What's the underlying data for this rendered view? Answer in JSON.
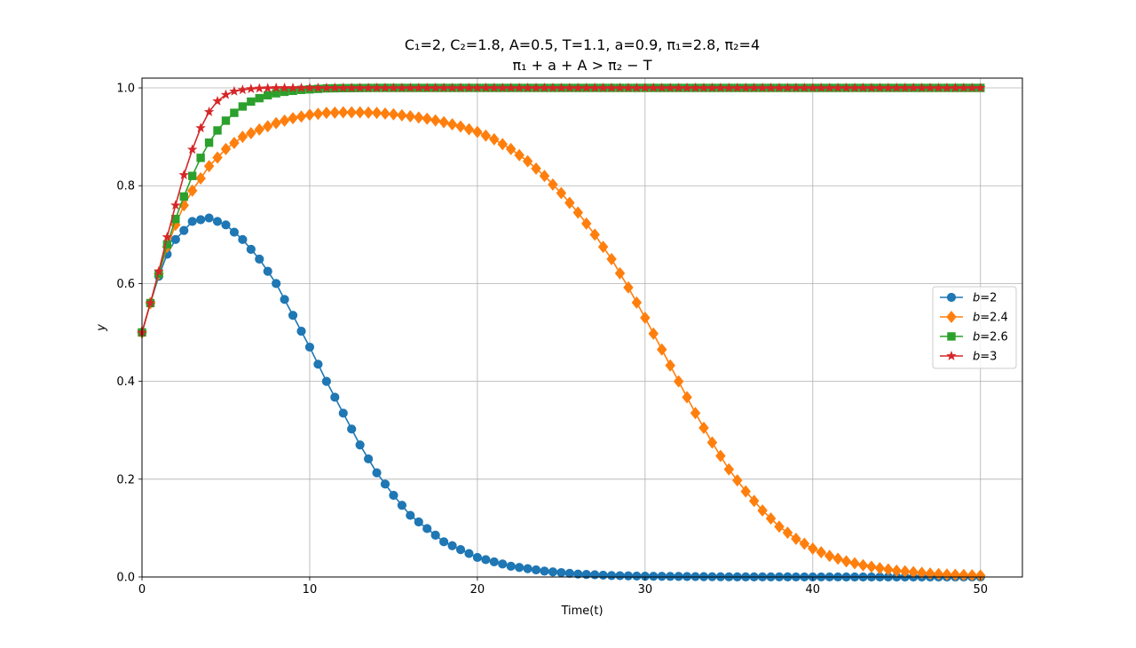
{
  "chart_data": {
    "type": "line",
    "title_line1": "C₁=2, C₂=1.8, A=0.5, T=1.1, a=0.9, π₁=2.8, π₂=4",
    "title_line2": "π₁ + a + A > π₂ − T",
    "xlabel": "Time(t)",
    "ylabel": "y",
    "xlim": [
      0,
      52.5
    ],
    "ylim": [
      0,
      1.02
    ],
    "x_ticks": [
      0,
      10,
      20,
      30,
      40,
      50
    ],
    "x_tick_labels": [
      "0",
      "10",
      "20",
      "30",
      "40",
      "50"
    ],
    "y_ticks": [
      0.0,
      0.2,
      0.4,
      0.6,
      0.8,
      1.0
    ],
    "y_tick_labels": [
      "0.0",
      "0.2",
      "0.4",
      "0.6",
      "0.8",
      "1.0"
    ],
    "grid": true,
    "legend_position": "center-right",
    "x_start": 0,
    "x_end": 50,
    "x_step": 0.5,
    "series": [
      {
        "name": "b=2",
        "label_var": "b",
        "label_val": "=2",
        "color": "#1f77b4",
        "marker": "circle",
        "x": [
          0,
          0.5,
          1,
          1.5,
          2,
          3,
          4,
          5,
          6,
          7,
          8,
          9,
          10,
          11,
          12,
          13,
          14,
          15,
          16,
          18,
          20,
          22,
          24,
          26,
          28,
          30,
          35,
          40,
          45,
          50
        ],
        "y": [
          0.5,
          0.56,
          0.615,
          0.66,
          0.69,
          0.727,
          0.734,
          0.72,
          0.69,
          0.65,
          0.6,
          0.535,
          0.47,
          0.4,
          0.335,
          0.27,
          0.213,
          0.167,
          0.126,
          0.072,
          0.04,
          0.022,
          0.012,
          0.006,
          0.003,
          0.0016,
          0.0003,
          0.0001,
          0.0,
          0.0
        ]
      },
      {
        "name": "b=2.4",
        "label_var": "b",
        "label_val": "=2.4",
        "color": "#ff7f0e",
        "marker": "diamond",
        "x": [
          0,
          0.5,
          1,
          1.5,
          2,
          2.5,
          3,
          4,
          5,
          6,
          7,
          8,
          9,
          10,
          11,
          12,
          13,
          14,
          15,
          16,
          17,
          18,
          19,
          20,
          21,
          22,
          23,
          24,
          25,
          26,
          27,
          28,
          29,
          30,
          31,
          32,
          33,
          34,
          35,
          36,
          37,
          38,
          39,
          40,
          41,
          42,
          43,
          44,
          45,
          46,
          47,
          48,
          49,
          50
        ],
        "y": [
          0.5,
          0.56,
          0.62,
          0.675,
          0.72,
          0.76,
          0.79,
          0.84,
          0.875,
          0.9,
          0.915,
          0.928,
          0.938,
          0.945,
          0.949,
          0.95,
          0.95,
          0.949,
          0.946,
          0.942,
          0.937,
          0.93,
          0.921,
          0.91,
          0.895,
          0.875,
          0.85,
          0.82,
          0.785,
          0.745,
          0.7,
          0.65,
          0.592,
          0.53,
          0.465,
          0.4,
          0.335,
          0.275,
          0.22,
          0.175,
          0.136,
          0.103,
          0.078,
          0.058,
          0.043,
          0.032,
          0.024,
          0.018,
          0.013,
          0.01,
          0.007,
          0.005,
          0.004,
          0.003
        ]
      },
      {
        "name": "b=2.6",
        "label_var": "b",
        "label_val": "=2.6",
        "color": "#2ca02c",
        "marker": "square",
        "x": [
          0,
          0.5,
          1,
          1.5,
          2,
          2.5,
          3,
          3.5,
          4,
          4.5,
          5,
          5.5,
          6,
          6.5,
          7,
          7.5,
          8,
          8.5,
          9,
          9.5,
          10,
          10.5,
          11,
          12,
          14,
          20,
          30,
          40,
          50
        ],
        "y": [
          0.5,
          0.56,
          0.62,
          0.68,
          0.732,
          0.778,
          0.82,
          0.857,
          0.888,
          0.913,
          0.933,
          0.949,
          0.962,
          0.972,
          0.979,
          0.985,
          0.989,
          0.992,
          0.994,
          0.996,
          0.997,
          0.998,
          0.999,
          0.9995,
          1.0,
          1.0,
          1.0,
          1.0,
          1.0
        ]
      },
      {
        "name": "b=3",
        "label_var": "b",
        "label_val": "=3",
        "color": "#d62728",
        "marker": "star",
        "x": [
          0,
          0.5,
          1,
          1.5,
          2,
          2.5,
          3,
          3.5,
          4,
          4.5,
          5,
          5.5,
          6,
          6.5,
          7,
          7.5,
          8,
          9,
          10,
          12,
          20,
          30,
          40,
          50
        ],
        "y": [
          0.5,
          0.56,
          0.625,
          0.695,
          0.76,
          0.822,
          0.874,
          0.918,
          0.951,
          0.973,
          0.986,
          0.993,
          0.996,
          0.998,
          0.999,
          0.9995,
          1.0,
          1.0,
          1.0,
          1.0,
          1.0,
          1.0,
          1.0,
          1.0
        ]
      }
    ]
  }
}
